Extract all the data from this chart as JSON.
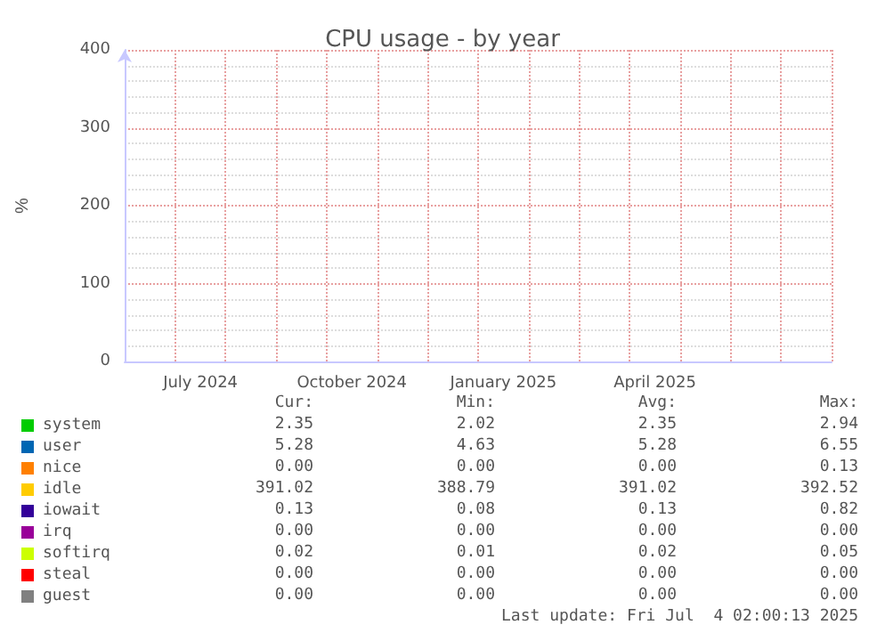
{
  "chart_data": {
    "type": "line",
    "title": "CPU usage - by year",
    "ylabel": "%",
    "categories": [
      null,
      "July 2024",
      null,
      null,
      "October 2024",
      null,
      null,
      "January 2025",
      null,
      null,
      "April 2025",
      null,
      null,
      null
    ],
    "ylim": [
      0,
      400
    ],
    "yticks": [
      0,
      100,
      200,
      300,
      400
    ],
    "grid": true,
    "legend": "bottom left",
    "series": [
      {
        "name": "system",
        "color": "#00cc00",
        "values": [
          null,
          null,
          null,
          null,
          null,
          null,
          null,
          null,
          null,
          null,
          null,
          null,
          null,
          null
        ]
      },
      {
        "name": "user",
        "color": "#0066b3",
        "values": [
          null,
          null,
          null,
          null,
          null,
          null,
          null,
          null,
          null,
          null,
          null,
          null,
          null,
          null
        ]
      },
      {
        "name": "nice",
        "color": "#ff8000",
        "values": [
          null,
          null,
          null,
          null,
          null,
          null,
          null,
          null,
          null,
          null,
          null,
          null,
          null,
          null
        ]
      },
      {
        "name": "idle",
        "color": "#ffcc00",
        "values": [
          null,
          null,
          null,
          null,
          null,
          null,
          null,
          null,
          null,
          null,
          null,
          null,
          null,
          null
        ]
      },
      {
        "name": "iowait",
        "color": "#330099",
        "values": [
          null,
          null,
          null,
          null,
          null,
          null,
          null,
          null,
          null,
          null,
          null,
          null,
          null,
          null
        ]
      },
      {
        "name": "irq",
        "color": "#990099",
        "values": [
          null,
          null,
          null,
          null,
          null,
          null,
          null,
          null,
          null,
          null,
          null,
          null,
          null,
          null
        ]
      },
      {
        "name": "softirq",
        "color": "#ccff00",
        "values": [
          null,
          null,
          null,
          null,
          null,
          null,
          null,
          null,
          null,
          null,
          null,
          null,
          null,
          null
        ]
      },
      {
        "name": "steal",
        "color": "#ff0000",
        "values": [
          null,
          null,
          null,
          null,
          null,
          null,
          null,
          null,
          null,
          null,
          null,
          null,
          null,
          null
        ]
      },
      {
        "name": "guest",
        "color": "#808080",
        "values": [
          null,
          null,
          null,
          null,
          null,
          null,
          null,
          null,
          null,
          null,
          null,
          null,
          null,
          null
        ]
      }
    ],
    "annotations": [
      "Cur:",
      "Min:",
      "Avg:",
      "Max:",
      "2.35",
      "2.02",
      "2.35",
      "2.94",
      "5.28",
      "4.63",
      "5.28",
      "6.55",
      "0.00",
      "0.00",
      "0.00",
      "0.13",
      "391.02",
      "388.79",
      "391.02",
      "392.52",
      "0.13",
      "0.08",
      "0.13",
      "0.82",
      "0.00",
      "0.00",
      "0.00",
      "0.00",
      "0.02",
      "0.01",
      "0.02",
      "0.05",
      "0.00",
      "0.00",
      "0.00",
      "0.00",
      "0.00",
      "0.00",
      "0.00",
      "0.00",
      "Last update: Fri Jul  4 02:00:13 2025"
    ]
  }
}
